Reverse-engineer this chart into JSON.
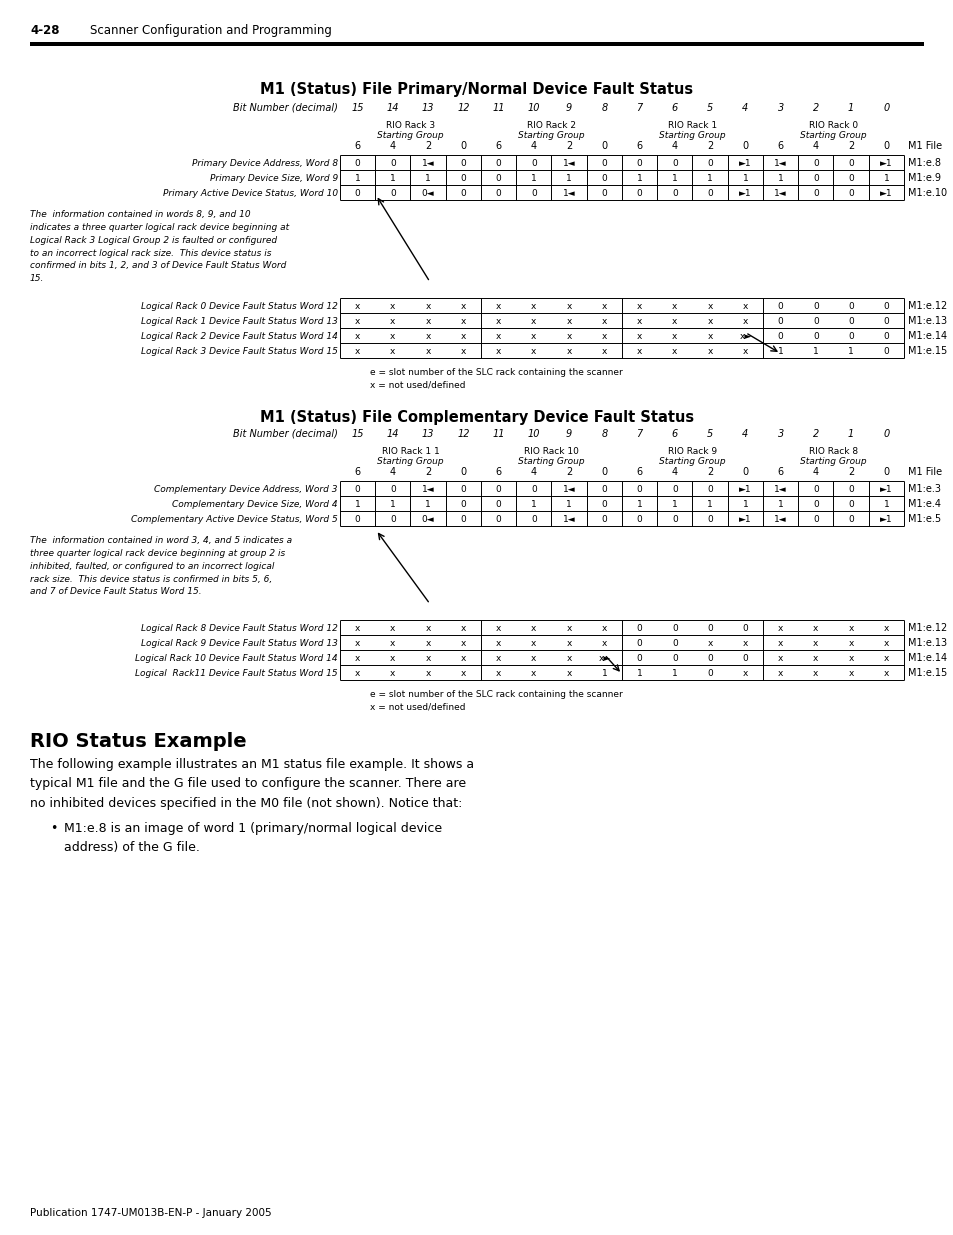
{
  "page_header_num": "4-28",
  "page_header_text": "Scanner Configuration and Programming",
  "footer_text": "Publication 1747-UM013B-EN-P - January 2005",
  "title1": "M1 (Status) File Primary/Normal Device Fault Status",
  "title2": "M1 (Status) File Complementary Device Fault Status",
  "bit_label": "Bit Number (decimal)",
  "bit_numbers": [
    "15",
    "14",
    "13",
    "12",
    "11",
    "10",
    "9",
    "8",
    "7",
    "6",
    "5",
    "4",
    "3",
    "2",
    "1",
    "0"
  ],
  "rack_headers_t1": [
    {
      "label": "RIO Rack 3",
      "sub": "Starting Group",
      "bits": [
        "6",
        "4",
        "2",
        "0"
      ]
    },
    {
      "label": "RIO Rack 2",
      "sub": "Starting Group",
      "bits": [
        "6",
        "4",
        "2",
        "0"
      ]
    },
    {
      "label": "RIO Rack 1",
      "sub": "Starting Group",
      "bits": [
        "6",
        "4",
        "2",
        "0"
      ]
    },
    {
      "label": "RIO Rack 0",
      "sub": "Starting Group",
      "bits": [
        "6",
        "4",
        "2",
        "0"
      ]
    }
  ],
  "rack_headers_t2": [
    {
      "label": "RIO Rack 1 1",
      "sub": "Starting Group",
      "bits": [
        "6",
        "4",
        "2",
        "0"
      ]
    },
    {
      "label": "RIO Rack 10",
      "sub": "Starting Group",
      "bits": [
        "6",
        "4",
        "2",
        "0"
      ]
    },
    {
      "label": "RIO Rack 9",
      "sub": "Starting Group",
      "bits": [
        "6",
        "4",
        "2",
        "0"
      ]
    },
    {
      "label": "RIO Rack 8",
      "sub": "Starting Group",
      "bits": [
        "6",
        "4",
        "2",
        "0"
      ]
    }
  ],
  "table1_rows": [
    {
      "label": "Primary Device Address, Word 8",
      "cells": [
        "0",
        "0",
        "1◄",
        "0",
        "0",
        "0",
        "1◄",
        "0",
        "0",
        "0",
        "0",
        "►1",
        "1◄",
        "0",
        "0",
        "►1"
      ],
      "mfile": "M1:e.8"
    },
    {
      "label": "Primary Device Size, Word 9",
      "cells": [
        "1",
        "1",
        "1",
        "0",
        "0",
        "1",
        "1",
        "0",
        "1",
        "1",
        "1",
        "1",
        "1",
        "0",
        "0",
        "1"
      ],
      "mfile": "M1:e.9"
    },
    {
      "label": "Primary Active Device Status, Word 10",
      "cells": [
        "0",
        "0",
        "0◄",
        "0",
        "0",
        "0",
        "1◄",
        "0",
        "0",
        "0",
        "0",
        "►1",
        "1◄",
        "0",
        "0",
        "►1"
      ],
      "mfile": "M1:e.10"
    }
  ],
  "table1_note": "The  information contained in words 8, 9, and 10\nindicates a three quarter logical rack device beginning at\nLogical Rack 3 Logical Group 2 is faulted or configured\nto an incorrect logical rack size.  This device status is\nconfirmed in bits 1, 2, and 3 of Device Fault Status Word\n15.",
  "table1_fault_rows": [
    {
      "label": "Logical Rack 0 Device Fault Status Word 12",
      "cells": [
        "x",
        "x",
        "x",
        "x",
        "x",
        "x",
        "x",
        "x",
        "x",
        "x",
        "x",
        "x",
        "0",
        "0",
        "0",
        "0"
      ],
      "mfile": "M1:e.12"
    },
    {
      "label": "Logical Rack 1 Device Fault Status Word 13",
      "cells": [
        "x",
        "x",
        "x",
        "x",
        "x",
        "x",
        "x",
        "x",
        "x",
        "x",
        "x",
        "x",
        "0",
        "0",
        "0",
        "0"
      ],
      "mfile": "M1:e.13"
    },
    {
      "label": "Logical Rack 2 Device Fault Status Word 14",
      "cells": [
        "x",
        "x",
        "x",
        "x",
        "x",
        "x",
        "x",
        "x",
        "x",
        "x",
        "x",
        "x►",
        "0",
        "0",
        "0",
        "0"
      ],
      "mfile": "M1:e.14"
    },
    {
      "label": "Logical Rack 3 Device Fault Status Word 15",
      "cells": [
        "x",
        "x",
        "x",
        "x",
        "x",
        "x",
        "x",
        "x",
        "x",
        "x",
        "x",
        "x",
        "1",
        "1",
        "1",
        "0"
      ],
      "mfile": "M1:e.15"
    }
  ],
  "legend1": "e = slot number of the SLC rack containing the scanner\nx = not used/defined",
  "table2_rows": [
    {
      "label": "Complementary Device Address, Word 3",
      "cells": [
        "0",
        "0",
        "1◄",
        "0",
        "0",
        "0",
        "1◄",
        "0",
        "0",
        "0",
        "0",
        "►1",
        "1◄",
        "0",
        "0",
        "►1"
      ],
      "mfile": "M1:e.3"
    },
    {
      "label": "Complementary Device Size, Word 4",
      "cells": [
        "1",
        "1",
        "1",
        "0",
        "0",
        "1",
        "1",
        "0",
        "1",
        "1",
        "1",
        "1",
        "1",
        "0",
        "0",
        "1"
      ],
      "mfile": "M1:e.4"
    },
    {
      "label": "Complementary Active Device Status, Word 5",
      "cells": [
        "0",
        "0",
        "0◄",
        "0",
        "0",
        "0",
        "1◄",
        "0",
        "0",
        "0",
        "0",
        "►1",
        "1◄",
        "0",
        "0",
        "►1"
      ],
      "mfile": "M1:e.5"
    }
  ],
  "table2_note": "The  information contained in word 3, 4, and 5 indicates a\nthree quarter logical rack device beginning at group 2 is\ninhibited, faulted, or configured to an incorrect logical\nrack size.  This device status is confirmed in bits 5, 6,\nand 7 of Device Fault Status Word 15.",
  "table2_fault_rows": [
    {
      "label": "Logical Rack 8 Device Fault Status Word 12",
      "cells": [
        "x",
        "x",
        "x",
        "x",
        "x",
        "x",
        "x",
        "x",
        "0",
        "0",
        "0",
        "0",
        "x",
        "x",
        "x",
        "x"
      ],
      "mfile": "M1:e.12"
    },
    {
      "label": "Logical Rack 9 Device Fault Status Word 13",
      "cells": [
        "x",
        "x",
        "x",
        "x",
        "x",
        "x",
        "x",
        "x",
        "0",
        "0",
        "x",
        "x",
        "x",
        "x",
        "x",
        "x"
      ],
      "mfile": "M1:e.13"
    },
    {
      "label": "Logical Rack 10 Device Fault Status Word 14",
      "cells": [
        "x",
        "x",
        "x",
        "x",
        "x",
        "x",
        "x",
        "x►",
        "0",
        "0",
        "0",
        "0",
        "x",
        "x",
        "x",
        "x"
      ],
      "mfile": "M1:e.14"
    },
    {
      "label": "Logical  Rack11 Device Fault Status Word 15",
      "cells": [
        "x",
        "x",
        "x",
        "x",
        "x",
        "x",
        "x",
        "1",
        "1",
        "1",
        "0",
        "x",
        "x",
        "x",
        "x",
        "x"
      ],
      "mfile": "M1:e.15"
    }
  ],
  "legend2": "e = slot number of the SLC rack containing the scanner\nx = not used/defined",
  "rio_status_title": "RIO Status Example",
  "rio_status_text": "The following example illustrates an M1 status file example. It shows a\ntypical M1 file and the G file used to configure the scanner. There are\nno inhibited devices specified in the M0 file (not shown). Notice that:",
  "bullet_text": "M1:e.8 is an image of word 1 (primary/normal logical device\naddress) of the G file."
}
